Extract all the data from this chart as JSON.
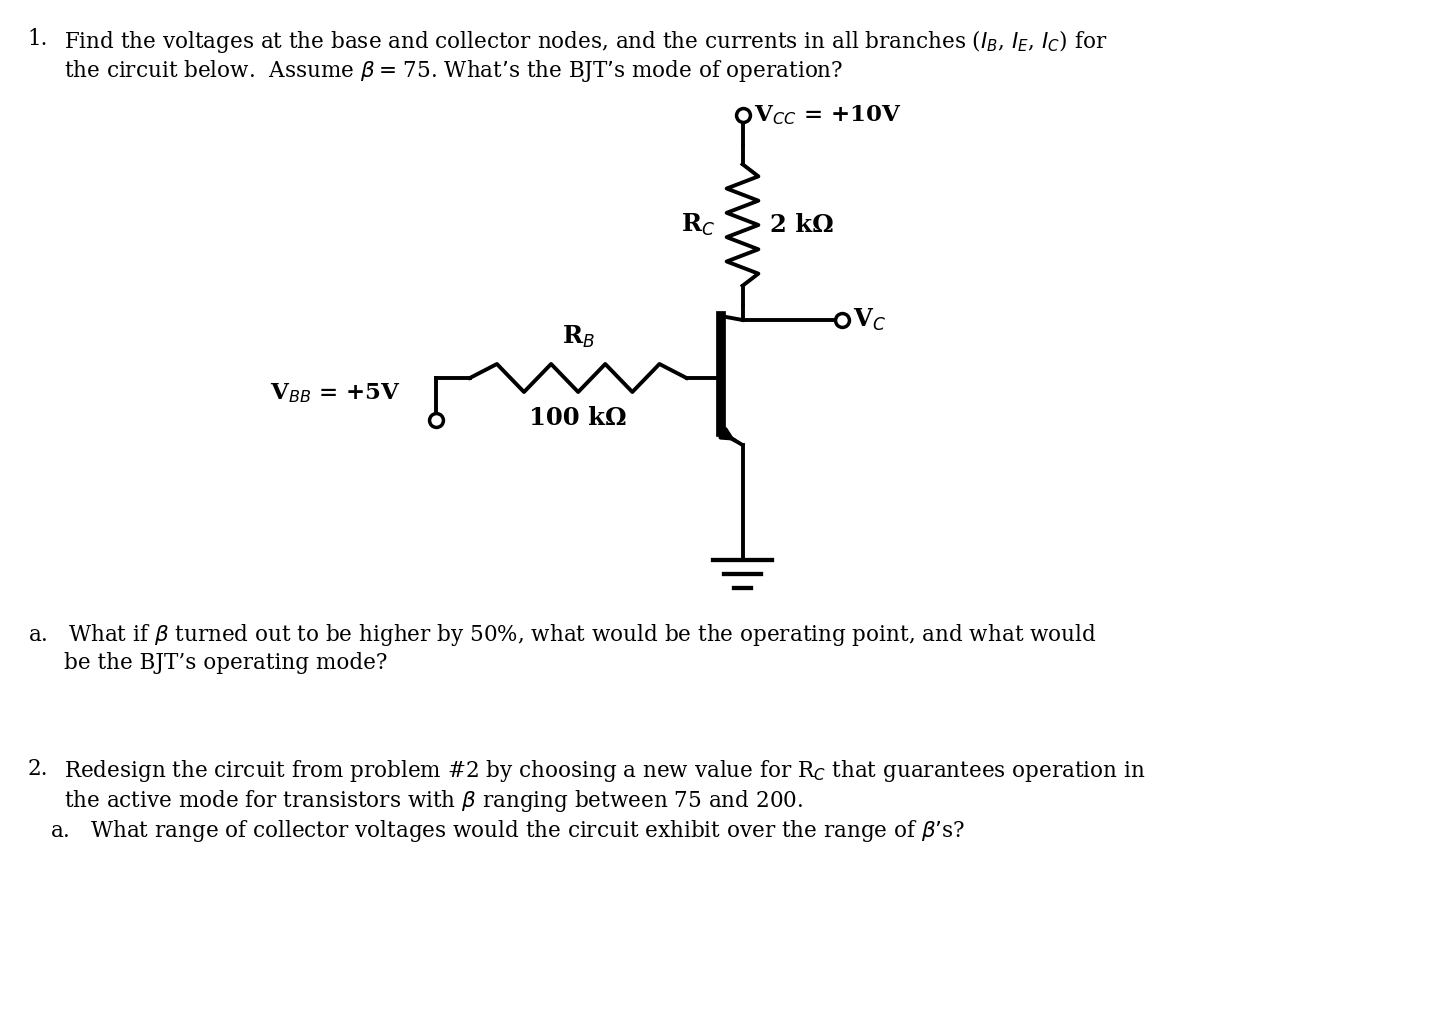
{
  "background_color": "#ffffff",
  "text_fontsize": 15.5,
  "fig_width": 14.42,
  "fig_height": 10.14,
  "vcc_label": "V$_{CC}$ = +10V",
  "rc_label": "R$_C$",
  "rc_value": "2 kΩ",
  "vbb_label": "V$_{BB}$ = +5V",
  "rb_label": "R$_B$",
  "rb_value": "100 kΩ",
  "vc_label": "V$_C$"
}
